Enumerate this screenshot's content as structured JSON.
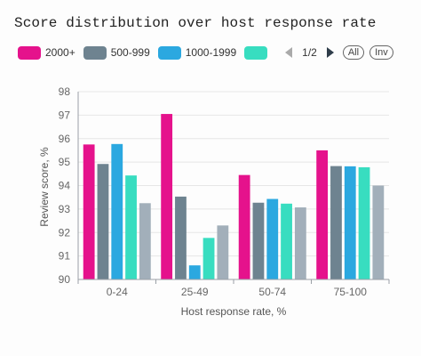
{
  "chart_data": {
    "type": "bar",
    "title": "Score distribution over host response rate",
    "xlabel": "Host response rate, %",
    "ylabel": "Review score, %",
    "categories": [
      "0-24",
      "25-49",
      "50-74",
      "75-100"
    ],
    "ylim": [
      90,
      98
    ],
    "yticks": [
      "90",
      "91",
      "92",
      "93",
      "94",
      "95",
      "96",
      "97",
      "98"
    ],
    "grid": true,
    "legend_position": "top",
    "series": [
      {
        "name": "2000+",
        "color": "#e5128c",
        "values": [
          95.75,
          97.05,
          94.45,
          95.5
        ]
      },
      {
        "name": "500-999",
        "color": "#6e8390",
        "values": [
          94.92,
          93.53,
          93.27,
          94.83
        ]
      },
      {
        "name": "1000-1999",
        "color": "#2ba8e0",
        "values": [
          95.77,
          90.6,
          93.43,
          94.82
        ]
      },
      {
        "name": "",
        "color": "#38ddc0",
        "values": [
          94.43,
          91.77,
          93.23,
          94.78
        ]
      },
      {
        "name": "",
        "color": "#a2afba",
        "values": [
          93.25,
          92.3,
          93.07,
          94.0
        ]
      }
    ]
  },
  "legend": {
    "pager_text": "1/2",
    "all_label": "All",
    "inv_label": "Inv"
  }
}
